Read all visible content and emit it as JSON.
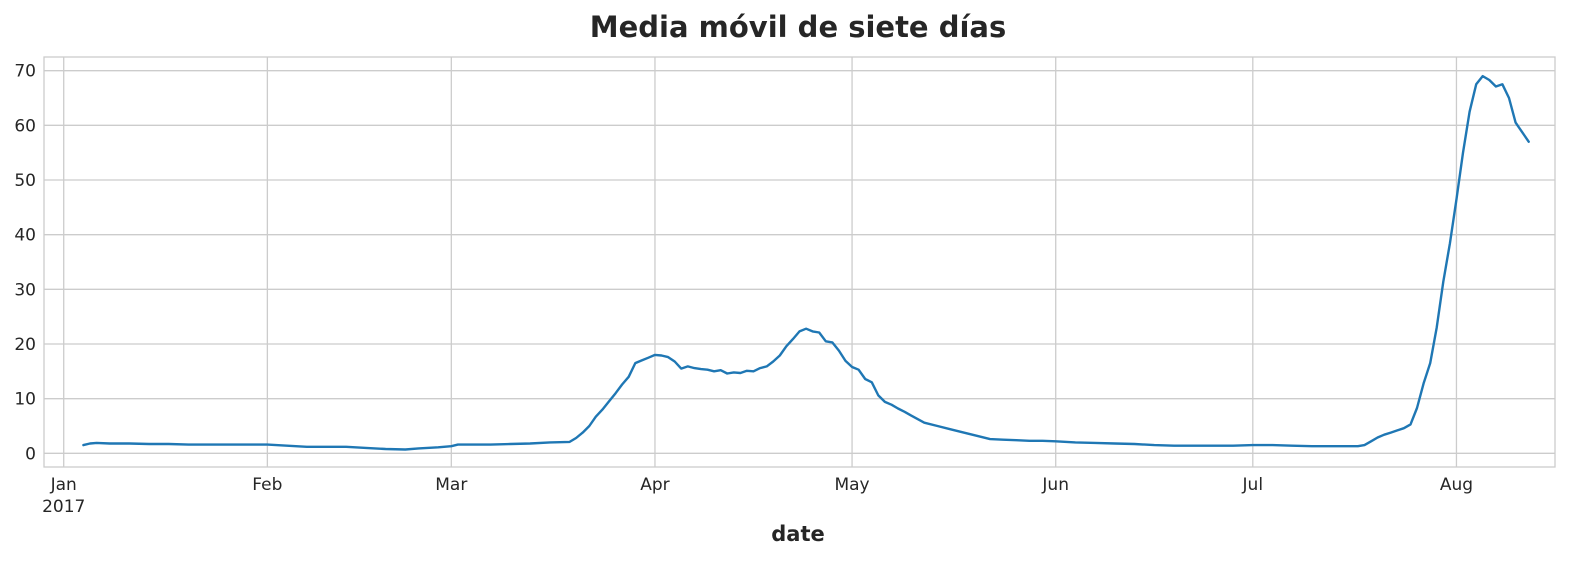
{
  "chart_data": {
    "type": "line",
    "title": "Media móvil de siete días",
    "xlabel": "date",
    "ylabel": "",
    "xlim": [
      "2016-12-29",
      "2017-08-16"
    ],
    "ylim": [
      -2.5,
      72.5
    ],
    "yticks": [
      0,
      10,
      20,
      30,
      40,
      50,
      60,
      70
    ],
    "xticks": [
      {
        "date": "2017-01-01",
        "label": "Jan",
        "sublabel": "2017"
      },
      {
        "date": "2017-02-01",
        "label": "Feb"
      },
      {
        "date": "2017-03-01",
        "label": "Mar"
      },
      {
        "date": "2017-04-01",
        "label": "Apr"
      },
      {
        "date": "2017-05-01",
        "label": "May"
      },
      {
        "date": "2017-06-01",
        "label": "Jun"
      },
      {
        "date": "2017-07-01",
        "label": "Jul"
      },
      {
        "date": "2017-08-01",
        "label": "Aug"
      }
    ],
    "grid": true,
    "series_color": "#1f77b4",
    "series": [
      {
        "x": [
          "2017-01-04",
          "2017-01-05",
          "2017-01-06",
          "2017-01-08",
          "2017-01-11",
          "2017-01-14",
          "2017-01-17",
          "2017-01-20",
          "2017-01-23",
          "2017-01-26",
          "2017-01-29",
          "2017-02-01",
          "2017-02-04",
          "2017-02-07",
          "2017-02-10",
          "2017-02-13",
          "2017-02-16",
          "2017-02-19",
          "2017-02-22",
          "2017-02-24",
          "2017-02-27",
          "2017-03-01",
          "2017-03-02",
          "2017-03-04",
          "2017-03-07",
          "2017-03-10",
          "2017-03-13",
          "2017-03-16",
          "2017-03-19",
          "2017-03-20",
          "2017-03-21",
          "2017-03-22",
          "2017-03-23",
          "2017-03-24",
          "2017-03-25",
          "2017-03-26",
          "2017-03-27",
          "2017-03-28",
          "2017-03-29",
          "2017-03-30",
          "2017-03-31",
          "2017-04-01",
          "2017-04-02",
          "2017-04-03",
          "2017-04-04",
          "2017-04-05",
          "2017-04-06",
          "2017-04-07",
          "2017-04-08",
          "2017-04-09",
          "2017-04-10",
          "2017-04-11",
          "2017-04-12",
          "2017-04-13",
          "2017-04-14",
          "2017-04-15",
          "2017-04-16",
          "2017-04-17",
          "2017-04-18",
          "2017-04-19",
          "2017-04-20",
          "2017-04-21",
          "2017-04-22",
          "2017-04-23",
          "2017-04-24",
          "2017-04-25",
          "2017-04-26",
          "2017-04-27",
          "2017-04-28",
          "2017-04-29",
          "2017-04-30",
          "2017-05-01",
          "2017-05-02",
          "2017-05-03",
          "2017-05-04",
          "2017-05-05",
          "2017-05-06",
          "2017-05-07",
          "2017-05-08",
          "2017-05-09",
          "2017-05-10",
          "2017-05-12",
          "2017-05-14",
          "2017-05-16",
          "2017-05-18",
          "2017-05-20",
          "2017-05-22",
          "2017-05-24",
          "2017-05-26",
          "2017-05-28",
          "2017-05-30",
          "2017-06-01",
          "2017-06-04",
          "2017-06-07",
          "2017-06-10",
          "2017-06-13",
          "2017-06-16",
          "2017-06-19",
          "2017-06-22",
          "2017-06-25",
          "2017-06-28",
          "2017-07-01",
          "2017-07-04",
          "2017-07-07",
          "2017-07-10",
          "2017-07-13",
          "2017-07-16",
          "2017-07-17",
          "2017-07-18",
          "2017-07-19",
          "2017-07-20",
          "2017-07-21",
          "2017-07-22",
          "2017-07-23",
          "2017-07-24",
          "2017-07-25",
          "2017-07-26",
          "2017-07-27",
          "2017-07-28",
          "2017-07-29",
          "2017-07-30",
          "2017-07-31",
          "2017-08-01",
          "2017-08-02",
          "2017-08-03",
          "2017-08-04",
          "2017-08-05",
          "2017-08-06",
          "2017-08-07",
          "2017-08-08",
          "2017-08-09",
          "2017-08-10",
          "2017-08-12"
        ],
        "values": [
          1.5,
          1.8,
          1.9,
          1.8,
          1.8,
          1.7,
          1.7,
          1.6,
          1.6,
          1.6,
          1.6,
          1.6,
          1.4,
          1.2,
          1.2,
          1.2,
          1.0,
          0.8,
          0.7,
          0.9,
          1.1,
          1.3,
          1.6,
          1.6,
          1.6,
          1.7,
          1.8,
          2.0,
          2.1,
          2.8,
          3.8,
          5.0,
          6.7,
          8.0,
          9.5,
          11.0,
          12.6,
          14.0,
          16.5,
          17.0,
          17.5,
          18.0,
          17.9,
          17.6,
          16.8,
          15.5,
          15.9,
          15.6,
          15.4,
          15.3,
          15.0,
          15.2,
          14.6,
          14.8,
          14.7,
          15.1,
          15.0,
          15.6,
          15.9,
          16.8,
          17.9,
          19.6,
          20.9,
          22.3,
          22.8,
          22.3,
          22.1,
          20.5,
          20.3,
          18.8,
          16.9,
          15.8,
          15.3,
          13.6,
          13.0,
          10.6,
          9.4,
          8.9,
          8.2,
          7.6,
          6.9,
          5.6,
          5.0,
          4.4,
          3.8,
          3.2,
          2.6,
          2.5,
          2.4,
          2.3,
          2.3,
          2.2,
          2.0,
          1.9,
          1.8,
          1.7,
          1.5,
          1.4,
          1.4,
          1.4,
          1.4,
          1.5,
          1.5,
          1.4,
          1.3,
          1.3,
          1.3,
          1.3,
          1.5,
          2.2,
          2.9,
          3.4,
          3.8,
          4.2,
          4.6,
          5.3,
          8.3,
          12.8,
          16.5,
          23.0,
          31.4,
          38.4,
          46.5,
          55.0,
          62.5,
          67.5,
          69.0,
          68.3,
          67.1,
          67.5,
          65.0,
          60.5,
          57.0
        ]
      }
    ]
  }
}
